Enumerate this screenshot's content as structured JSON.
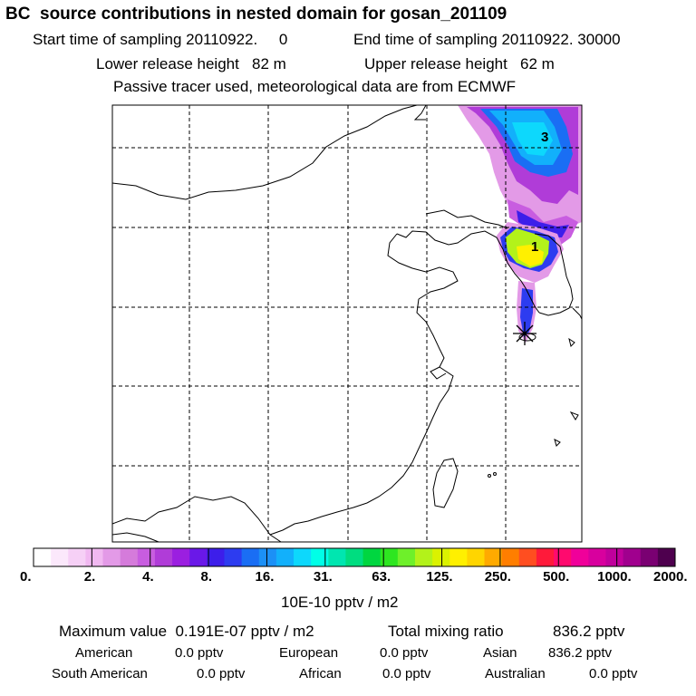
{
  "header": {
    "title": "BC  source contributions in nested domain for gosan_201109",
    "start_label": "Start time of sampling 20110922.     0",
    "end_label": "End time of sampling 20110922. 30000",
    "lower_label": "Lower release height   82 m",
    "upper_label": "Upper release height   62 m",
    "tracer_label": "Passive tracer used, meteorological data are from ECMWF"
  },
  "map": {
    "region_labels": [
      "3",
      "1"
    ],
    "receptor_marker": "star-marker-icon"
  },
  "colorbar": {
    "colors": [
      "#ffffff",
      "#fbe8fb",
      "#f6d0f6",
      "#f1b8f1",
      "#e39ae7",
      "#d57bdb",
      "#c85de0",
      "#b03cd8",
      "#9b1fe0",
      "#6a18e8",
      "#3d1eea",
      "#2d3cf0",
      "#1a6ef4",
      "#1c90f6",
      "#12b0fb",
      "#0dd8fc",
      "#00ffe7",
      "#00e6b0",
      "#00dd80",
      "#00d640",
      "#2ee620",
      "#6ef02a",
      "#b3f21a",
      "#dbf200",
      "#fff000",
      "#ffd500",
      "#ffaa00",
      "#ff7e00",
      "#ff4e20",
      "#ff1a3a",
      "#ff0a6e",
      "#f0009a",
      "#d8009e",
      "#c0009c",
      "#a0008e",
      "#7a0072",
      "#4e004e"
    ],
    "tick_labels": [
      "0.",
      "2.",
      "4.",
      "8.",
      "16.",
      "31.",
      "63.",
      "125.",
      "250.",
      "500.",
      "1000.",
      "2000."
    ],
    "unit_label": "10E-10 pptv / m2"
  },
  "stats": {
    "max_label": "Maximum value  0.191E-07 pptv / m2",
    "total_label": "Total mixing ratio",
    "total_value": "836.2 pptv",
    "american_label": "American",
    "american_value": "0.0 pptv",
    "european_label": "European",
    "european_value": "0.0 pptv",
    "asian_label": "Asian",
    "asian_value": "836.2 pptv",
    "south_american_label": "South American",
    "south_american_value": "0.0 pptv",
    "african_label": "African",
    "african_value": "0.0 pptv",
    "australian_label": "Australian",
    "australian_value": "0.0 pptv"
  }
}
